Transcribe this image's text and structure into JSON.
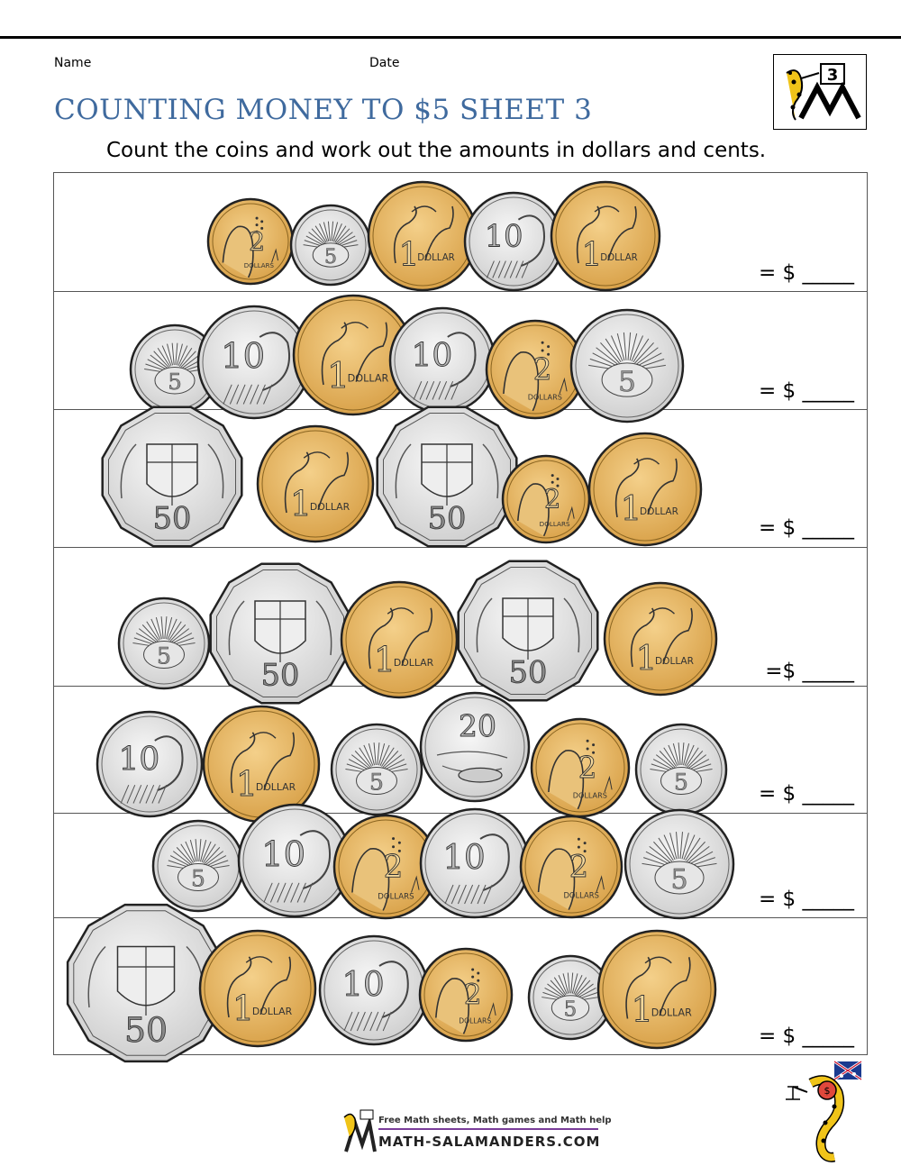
{
  "header": {
    "name_label": "Name",
    "date_label": "Date",
    "title": "COUNTING MONEY TO $5 SHEET 3",
    "instructions": "Count the coins and work out the amounts in dollars and cents.",
    "grade_badge": "3"
  },
  "rows": [
    {
      "answer": "= $ _____",
      "coins": [
        "2",
        "5c",
        "1",
        "10c",
        "1"
      ]
    },
    {
      "answer": "= $ _____",
      "coins": [
        "5c",
        "10c",
        "1",
        "10c",
        "2",
        "5c"
      ]
    },
    {
      "answer": "= $ _____",
      "coins": [
        "50c",
        "1",
        "50c",
        "2",
        "1"
      ]
    },
    {
      "answer": "=$ _____",
      "coins": [
        "5c",
        "50c",
        "1",
        "50c",
        "1"
      ]
    },
    {
      "answer": "= $ _____",
      "coins": [
        "10c",
        "1",
        "5c",
        "20c",
        "2",
        "5c"
      ]
    },
    {
      "answer": "= $ _____",
      "coins": [
        "5c",
        "10c",
        "2",
        "10c",
        "2",
        "5c"
      ]
    },
    {
      "answer": "= $ _____",
      "coins": [
        "50c",
        "1",
        "10c",
        "2",
        "5c",
        "1"
      ]
    }
  ],
  "coin_faces": {
    "5c": "5",
    "10c": "10",
    "20c": "20",
    "50c": "50",
    "1": "1",
    "1_caption": "DOLLAR",
    "2": "2",
    "2_caption": "DOLLARS"
  },
  "footer": {
    "tagline": "Free Math sheets, Math games and Math help",
    "site": "MATH-SALAMANDERS.COM",
    "flag_label": "$"
  },
  "colors": {
    "gold": "#e2b25e",
    "gold_dark": "#a87a2a",
    "silver": "#dcdcdc",
    "title_blue": "#3f6a9e"
  }
}
